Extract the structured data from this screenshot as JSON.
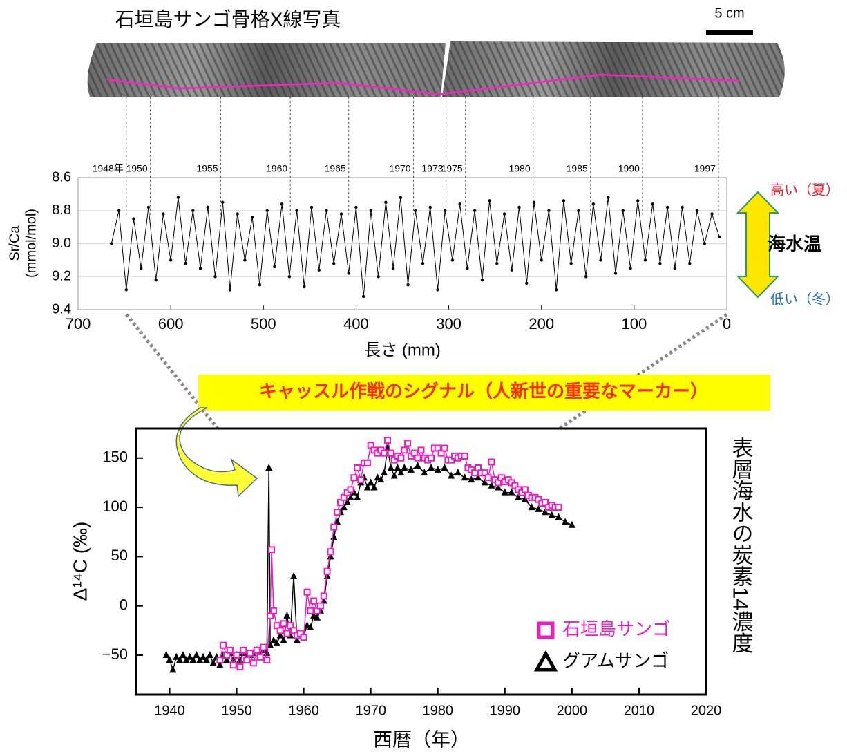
{
  "photo": {
    "title": "石垣島サンゴ骨格X線写真",
    "scale": "5 cm"
  },
  "sst_legend": {
    "high": "高い（夏）",
    "label": "海水温",
    "low": "低い（冬）"
  },
  "callout": "キャッスル作戦のシグナル（人新世の重要なマーカー）",
  "chart_data": [
    {
      "type": "line",
      "x_label": "長さ (mm)",
      "y_label": [
        "Sr/Ca",
        "(mmol/mol)"
      ],
      "xlim": [
        700,
        0
      ],
      "xticks": [
        700,
        600,
        500,
        400,
        300,
        200,
        100,
        0
      ],
      "ylim": [
        9.4,
        8.6
      ],
      "yticks": [
        8.6,
        8.8,
        {
          "value": 9,
          "label": "9.0"
        },
        9.2,
        9.4
      ],
      "grid": true,
      "year_labels": [
        "1948年",
        "1950",
        "1955",
        "1960",
        "1965",
        "1970",
        "1973",
        "1975",
        "1980",
        "1985",
        "1990",
        "1997"
      ],
      "year_x": [
        648,
        622,
        546,
        471,
        408,
        338,
        303,
        282,
        209,
        147,
        91,
        9
      ],
      "x": [
        664,
        656,
        648,
        640,
        632,
        624,
        616,
        608,
        600,
        592,
        584,
        576,
        568,
        560,
        552,
        544,
        536,
        528,
        520,
        512,
        504,
        496,
        488,
        480,
        472,
        464,
        456,
        448,
        440,
        432,
        424,
        416,
        408,
        400,
        392,
        384,
        376,
        368,
        360,
        352,
        344,
        336,
        328,
        320,
        312,
        304,
        296,
        288,
        280,
        272,
        264,
        256,
        248,
        240,
        232,
        224,
        216,
        208,
        200,
        192,
        184,
        176,
        168,
        160,
        152,
        144,
        136,
        128,
        120,
        112,
        104,
        96,
        88,
        80,
        72,
        64,
        56,
        48,
        40,
        32,
        24,
        16,
        8
      ],
      "series": [
        {
          "color": "#000000",
          "values": [
            9.0,
            8.8,
            9.28,
            8.85,
            9.15,
            8.78,
            9.22,
            8.82,
            9.1,
            8.72,
            9.12,
            8.8,
            9.15,
            8.78,
            9.2,
            8.75,
            9.28,
            8.82,
            9.1,
            8.84,
            9.25,
            8.8,
            9.14,
            8.76,
            9.2,
            8.8,
            9.26,
            8.78,
            9.16,
            8.8,
            9.12,
            8.82,
            9.18,
            8.78,
            9.32,
            8.8,
            9.2,
            8.75,
            9.15,
            8.72,
            9.25,
            8.8,
            9.12,
            8.78,
            9.28,
            8.8,
            9.1,
            8.76,
            9.15,
            8.8,
            9.22,
            8.74,
            9.12,
            8.82,
            9.16,
            8.78,
            9.24,
            8.75,
            9.1,
            8.8,
            9.28,
            8.74,
            9.12,
            8.8,
            9.2,
            8.76,
            9.1,
            8.72,
            9.18,
            8.8,
            9.15,
            8.74,
            9.1,
            8.76,
            9.12,
            8.78,
            9.15,
            8.78,
            9.12,
            8.8,
            9.0,
            8.82,
            8.96
          ]
        }
      ]
    },
    {
      "type": "line",
      "x_label": "西暦（年）",
      "y_label": "Δ¹⁴C (‰)",
      "side_title": "表層海水の炭素14濃度",
      "xlim": [
        1935,
        2020
      ],
      "xticks": [
        1940,
        1950,
        1960,
        1970,
        1980,
        1990,
        2000,
        2010,
        2020
      ],
      "ylim": [
        -90,
        180
      ],
      "yticks": [
        {
          "value": -50,
          "label": "−50"
        },
        0,
        50,
        100,
        150
      ],
      "legend_position": "lower right",
      "series": [
        {
          "name": "石垣島サンゴ",
          "color": "#ec1bc4",
          "marker": "square",
          "x": [
            1947.5,
            1948,
            1948.5,
            1949,
            1949.5,
            1950,
            1950.5,
            1951,
            1951.5,
            1952,
            1952.5,
            1953,
            1953.5,
            1954,
            1954.5,
            1955,
            1955.2,
            1955.5,
            1956,
            1956.5,
            1957,
            1957.5,
            1958,
            1958.5,
            1959,
            1959.5,
            1960,
            1960.5,
            1961,
            1961.5,
            1962,
            1962.5,
            1963,
            1963.5,
            1964,
            1964.5,
            1965,
            1965.5,
            1966,
            1966.5,
            1967,
            1967.5,
            1968,
            1968.5,
            1969,
            1969.5,
            1970,
            1970.5,
            1971,
            1971.5,
            1972,
            1972.5,
            1973,
            1973.5,
            1974,
            1974.5,
            1975,
            1975.5,
            1976,
            1976.5,
            1977,
            1977.5,
            1978,
            1978.5,
            1979,
            1979.5,
            1980,
            1980.5,
            1981,
            1981.5,
            1982,
            1982.5,
            1983,
            1983.5,
            1984,
            1984.5,
            1985,
            1985.5,
            1986,
            1986.5,
            1987,
            1987.5,
            1988,
            1988.5,
            1989,
            1989.5,
            1990,
            1990.5,
            1991,
            1991.5,
            1992,
            1992.5,
            1993,
            1993.5,
            1994,
            1994.5,
            1995,
            1995.5,
            1996,
            1996.5,
            1997,
            1997.5,
            1998
          ],
          "values": [
            -55,
            -40,
            -50,
            -45,
            -60,
            -50,
            -62,
            -45,
            -55,
            -48,
            -58,
            -45,
            -52,
            -42,
            -55,
            -10,
            57,
            -5,
            -20,
            -25,
            -18,
            -28,
            -20,
            -25,
            -30,
            -28,
            -32,
            14,
            -5,
            5,
            -5,
            0,
            10,
            35,
            55,
            80,
            95,
            105,
            110,
            115,
            118,
            130,
            140,
            128,
            145,
            145,
            163,
            158,
            155,
            158,
            155,
            168,
            155,
            148,
            152,
            150,
            158,
            165,
            152,
            155,
            150,
            158,
            150,
            148,
            150,
            160,
            160,
            155,
            160,
            148,
            148,
            152,
            150,
            152,
            152,
            140,
            138,
            135,
            140,
            135,
            135,
            130,
            146,
            128,
            125,
            130,
            126,
            128,
            125,
            122,
            118,
            115,
            118,
            112,
            110,
            110,
            108,
            104,
            105,
            100,
            102,
            100,
            100
          ]
        },
        {
          "name": "グアムサンゴ",
          "color": "#000000",
          "marker": "triangle",
          "x": [
            1939.5,
            1940,
            1940.5,
            1941,
            1941.5,
            1942,
            1942.5,
            1943,
            1943.5,
            1944,
            1944.5,
            1945,
            1945.5,
            1946,
            1946.5,
            1947,
            1947.5,
            1948,
            1948.5,
            1949,
            1949.5,
            1950,
            1950.5,
            1951,
            1951.5,
            1952,
            1952.5,
            1953,
            1953.5,
            1954,
            1954.5,
            1954.8,
            1955,
            1955.5,
            1956,
            1956.5,
            1957,
            1957.5,
            1958,
            1958.5,
            1959,
            1959.5,
            1960,
            1960.5,
            1961,
            1961.5,
            1962,
            1962.5,
            1963,
            1963.5,
            1964,
            1964.5,
            1965,
            1965.5,
            1966,
            1966.5,
            1967,
            1967.5,
            1968,
            1968.5,
            1969,
            1969.5,
            1970,
            1970.5,
            1971,
            1971.5,
            1972,
            1972.5,
            1973,
            1973.5,
            1974,
            1974.5,
            1975,
            1976,
            1977,
            1978,
            1979,
            1980,
            1981,
            1982,
            1983,
            1984,
            1985,
            1986,
            1987,
            1988,
            1989,
            1990,
            1991,
            1992,
            1993,
            1994,
            1995,
            1996,
            1997,
            1998,
            1999,
            2000
          ],
          "values": [
            -50,
            -55,
            -65,
            -52,
            -55,
            -50,
            -55,
            -52,
            -55,
            -50,
            -55,
            -52,
            -55,
            -50,
            -58,
            -52,
            -60,
            -50,
            -55,
            -48,
            -55,
            -50,
            -55,
            -48,
            -52,
            -50,
            -48,
            -45,
            -50,
            -45,
            -48,
            140,
            -40,
            -35,
            -38,
            -30,
            -35,
            -10,
            -30,
            30,
            -35,
            -30,
            -30,
            -20,
            -22,
            -10,
            -12,
            -5,
            5,
            30,
            50,
            70,
            85,
            95,
            100,
            105,
            110,
            115,
            110,
            125,
            130,
            120,
            125,
            120,
            130,
            128,
            135,
            160,
            140,
            132,
            140,
            135,
            140,
            138,
            142,
            135,
            140,
            138,
            140,
            132,
            135,
            130,
            128,
            130,
            125,
            122,
            120,
            115,
            115,
            110,
            108,
            100,
            98,
            95,
            92,
            90,
            85,
            82
          ]
        }
      ]
    }
  ]
}
